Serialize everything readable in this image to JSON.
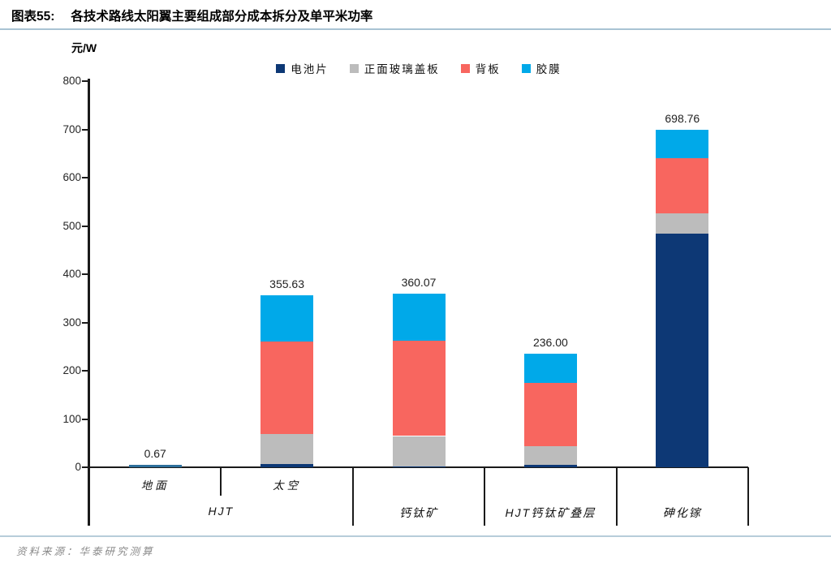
{
  "header": {
    "figure_label": "图表55:",
    "title": "各技术路线太阳翼主要组成部分成本拆分及单平米功率"
  },
  "chart_data": {
    "type": "bar",
    "stacked": true,
    "title": "各技术路线太阳翼主要组成部分成本拆分及单平米功率",
    "unit_label": "元/W",
    "xlabel": "",
    "ylabel": "元/W",
    "ylim": [
      0,
      800
    ],
    "yticks": [
      0,
      100,
      200,
      300,
      400,
      500,
      600,
      700,
      800
    ],
    "grid": false,
    "legend_position": "top-center",
    "series": [
      {
        "name": "电池片",
        "color": "#0d3875"
      },
      {
        "name": "正面玻璃盖板",
        "color": "#bcbcbc"
      },
      {
        "name": "背板",
        "color": "#f8665f"
      },
      {
        "name": "胶膜",
        "color": "#00a9e9"
      }
    ],
    "groups": [
      {
        "label": "HJT",
        "bars": [
          {
            "sublabel": "地面",
            "total": 0.67,
            "total_label": "0.67",
            "values": [
              0.25,
              0.12,
              0.2,
              0.1
            ],
            "render_as_line": true,
            "line_color": "#2d6f9b"
          },
          {
            "sublabel": "太空",
            "total": 355.63,
            "total_label": "355.63",
            "values": [
              7.3,
              61.4,
              191.9,
              95.0
            ]
          }
        ]
      },
      {
        "label": "钙钛矿",
        "bars": [
          {
            "sublabel": "",
            "total": 360.07,
            "total_label": "360.07",
            "values": [
              2.0,
              62.7,
              197.1,
              98.3
            ]
          }
        ]
      },
      {
        "label": "HJT钙钛矿叠层",
        "bars": [
          {
            "sublabel": "",
            "total": 236.0,
            "total_label": "236.00",
            "values": [
              4.7,
              38.5,
              131.2,
              61.6
            ]
          }
        ]
      },
      {
        "label": "砷化镓",
        "bars": [
          {
            "sublabel": "",
            "total": 698.76,
            "total_label": "698.76",
            "values": [
              483.3,
              42.5,
              115.1,
              57.9
            ]
          }
        ]
      }
    ]
  },
  "footer": {
    "source_label": "资料来源：",
    "source_text": "华泰研究测算"
  }
}
